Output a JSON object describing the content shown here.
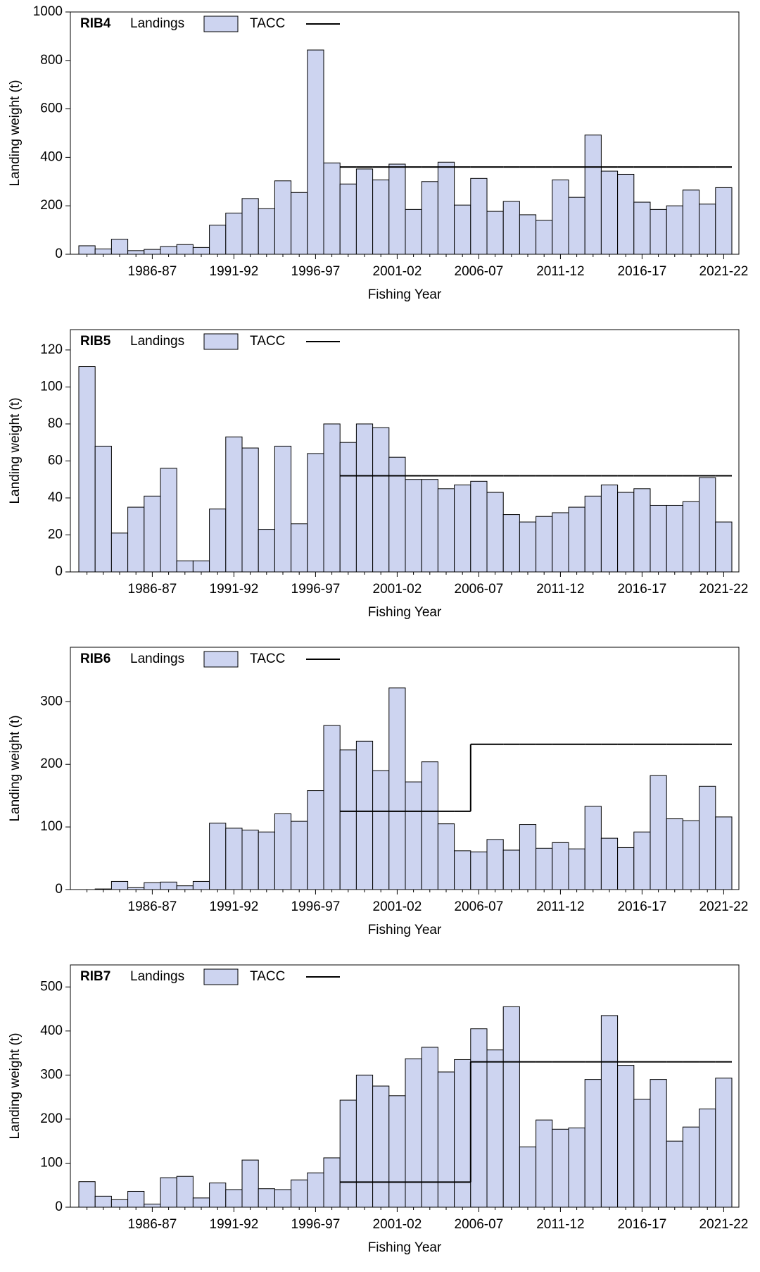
{
  "chart_data": [
    {
      "type": "bar",
      "title": "RIB4",
      "xlabel": "Fishing Year",
      "ylabel": "Landing weight (t)",
      "categories": [
        null,
        null,
        null,
        null,
        "1986-87",
        null,
        null,
        null,
        null,
        "1991-92",
        null,
        null,
        null,
        null,
        "1996-97",
        null,
        null,
        null,
        null,
        "2001-02",
        null,
        null,
        null,
        null,
        "2006-07",
        null,
        null,
        null,
        null,
        "2011-12",
        null,
        null,
        null,
        null,
        "2016-17",
        null,
        null,
        null,
        null,
        "2021-22"
      ],
      "series": [
        {
          "name": "Landings",
          "color": "#cdd4f0",
          "values": [
            35,
            22,
            62,
            15,
            20,
            32,
            40,
            28,
            120,
            170,
            230,
            188,
            303,
            255,
            843,
            377,
            290,
            352,
            307,
            372,
            185,
            300,
            380,
            203,
            313,
            177,
            218,
            163,
            140,
            307,
            235,
            492,
            343,
            330,
            215,
            185,
            200,
            265,
            207,
            275
          ]
        },
        {
          "name": "TACC",
          "color": "#000000",
          "type": "step",
          "values": [
            null,
            null,
            null,
            null,
            null,
            null,
            null,
            null,
            null,
            null,
            null,
            null,
            null,
            null,
            null,
            null,
            360,
            360,
            360,
            360,
            360,
            360,
            360,
            360,
            360,
            360,
            360,
            360,
            360,
            360,
            360,
            360,
            360,
            360,
            360,
            360,
            360,
            360,
            360,
            360
          ]
        }
      ],
      "ylim": [
        0,
        1000
      ],
      "yticks": [
        0,
        200,
        400,
        600,
        800,
        1000
      ]
    },
    {
      "type": "bar",
      "title": "RIB5",
      "xlabel": "Fishing Year",
      "ylabel": "Landing weight (t)",
      "categories": [
        null,
        null,
        null,
        null,
        "1986-87",
        null,
        null,
        null,
        null,
        "1991-92",
        null,
        null,
        null,
        null,
        "1996-97",
        null,
        null,
        null,
        null,
        "2001-02",
        null,
        null,
        null,
        null,
        "2006-07",
        null,
        null,
        null,
        null,
        "2011-12",
        null,
        null,
        null,
        null,
        "2016-17",
        null,
        null,
        null,
        null,
        "2021-22"
      ],
      "series": [
        {
          "name": "Landings",
          "color": "#cdd4f0",
          "values": [
            111,
            68,
            21,
            35,
            41,
            56,
            6,
            6,
            34,
            73,
            67,
            23,
            68,
            26,
            64,
            80,
            70,
            80,
            78,
            62,
            50,
            50,
            45,
            47,
            49,
            43,
            31,
            27,
            30,
            32,
            35,
            41,
            47,
            43,
            45,
            36,
            36,
            38,
            51,
            27
          ]
        },
        {
          "name": "TACC",
          "color": "#000000",
          "type": "step",
          "values": [
            null,
            null,
            null,
            null,
            null,
            null,
            null,
            null,
            null,
            null,
            null,
            null,
            null,
            null,
            null,
            null,
            52,
            52,
            52,
            52,
            52,
            52,
            52,
            52,
            52,
            52,
            52,
            52,
            52,
            52,
            52,
            52,
            52,
            52,
            52,
            52,
            52,
            52,
            52,
            52
          ]
        }
      ],
      "ylim": [
        0,
        131
      ],
      "yticks": [
        0,
        20,
        40,
        60,
        80,
        100,
        120
      ]
    },
    {
      "type": "bar",
      "title": "RIB6",
      "xlabel": "Fishing Year",
      "ylabel": "Landing weight (t)",
      "categories": [
        null,
        null,
        null,
        null,
        "1986-87",
        null,
        null,
        null,
        null,
        "1991-92",
        null,
        null,
        null,
        null,
        "1996-97",
        null,
        null,
        null,
        null,
        "2001-02",
        null,
        null,
        null,
        null,
        "2006-07",
        null,
        null,
        null,
        null,
        "2011-12",
        null,
        null,
        null,
        null,
        "2016-17",
        null,
        null,
        null,
        null,
        "2021-22"
      ],
      "series": [
        {
          "name": "Landings",
          "color": "#cdd4f0",
          "values": [
            0,
            1,
            13,
            3,
            11,
            12,
            6,
            13,
            106,
            98,
            95,
            92,
            121,
            109,
            158,
            262,
            223,
            237,
            190,
            322,
            172,
            204,
            105,
            62,
            60,
            80,
            63,
            104,
            66,
            75,
            65,
            133,
            82,
            67,
            92,
            182,
            113,
            110,
            165,
            116
          ]
        },
        {
          "name": "TACC",
          "color": "#000000",
          "type": "step",
          "values": [
            null,
            null,
            null,
            null,
            null,
            null,
            null,
            null,
            null,
            null,
            null,
            null,
            null,
            null,
            null,
            null,
            125,
            125,
            125,
            125,
            125,
            125,
            125,
            125,
            232,
            232,
            232,
            232,
            232,
            232,
            232,
            232,
            232,
            232,
            232,
            232,
            232,
            232,
            232,
            232
          ]
        }
      ],
      "ylim": [
        0,
        387
      ],
      "yticks": [
        0,
        100,
        200,
        300
      ]
    },
    {
      "type": "bar",
      "title": "RIB7",
      "xlabel": "Fishing Year",
      "ylabel": "Landing weight (t)",
      "categories": [
        null,
        null,
        null,
        null,
        "1986-87",
        null,
        null,
        null,
        null,
        "1991-92",
        null,
        null,
        null,
        null,
        "1996-97",
        null,
        null,
        null,
        null,
        "2001-02",
        null,
        null,
        null,
        null,
        "2006-07",
        null,
        null,
        null,
        null,
        "2011-12",
        null,
        null,
        null,
        null,
        "2016-17",
        null,
        null,
        null,
        null,
        "2021-22"
      ],
      "series": [
        {
          "name": "Landings",
          "color": "#cdd4f0",
          "values": [
            58,
            25,
            17,
            36,
            7,
            67,
            70,
            21,
            55,
            40,
            107,
            42,
            40,
            62,
            78,
            112,
            243,
            300,
            275,
            253,
            337,
            363,
            307,
            335,
            405,
            357,
            455,
            137,
            198,
            177,
            180,
            290,
            435,
            322,
            245,
            290,
            150,
            182,
            223,
            293
          ]
        },
        {
          "name": "TACC",
          "color": "#000000",
          "type": "step",
          "values": [
            null,
            null,
            null,
            null,
            null,
            null,
            null,
            null,
            null,
            null,
            null,
            null,
            null,
            null,
            null,
            null,
            57,
            57,
            57,
            57,
            57,
            57,
            57,
            57,
            330,
            330,
            330,
            330,
            330,
            330,
            330,
            330,
            330,
            330,
            330,
            330,
            330,
            330,
            330,
            330
          ]
        }
      ],
      "ylim": [
        0,
        550
      ],
      "yticks": [
        0,
        100,
        200,
        300,
        400,
        500
      ]
    }
  ]
}
